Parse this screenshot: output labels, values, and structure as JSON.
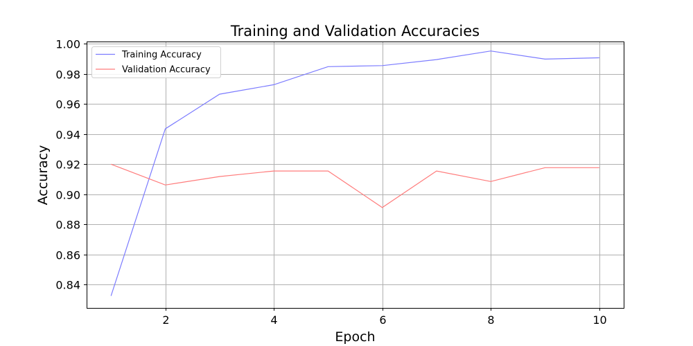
{
  "chart_data": {
    "type": "line",
    "title": "Training and Validation Accuracies",
    "xlabel": "Epoch",
    "ylabel": "Accuracy",
    "x": [
      1,
      2,
      3,
      4,
      5,
      6,
      7,
      8,
      9,
      10
    ],
    "xlim": [
      0.55,
      10.45
    ],
    "ylim": [
      0.8245,
      1.0015
    ],
    "x_ticks": [
      2,
      4,
      6,
      8,
      10
    ],
    "x_tick_labels": [
      "2",
      "4",
      "6",
      "8",
      "10"
    ],
    "y_ticks": [
      0.84,
      0.86,
      0.88,
      0.9,
      0.92,
      0.94,
      0.96,
      0.98,
      1.0
    ],
    "y_tick_labels": [
      "0.84",
      "0.86",
      "0.88",
      "0.90",
      "0.92",
      "0.94",
      "0.96",
      "0.98",
      "1.00"
    ],
    "grid": true,
    "legend_position": "top-left",
    "series": [
      {
        "name": "Training Accuracy",
        "color": "#7b7bff",
        "values": [
          0.8325,
          0.9435,
          0.9665,
          0.9728,
          0.9848,
          0.9855,
          0.9895,
          0.9952,
          0.9898,
          0.9907
        ]
      },
      {
        "name": "Validation Accuracy",
        "color": "#ff7b7b",
        "values": [
          0.92,
          0.9062,
          0.9118,
          0.9155,
          0.9155,
          0.8912,
          0.9155,
          0.9085,
          0.9177,
          0.9177
        ]
      }
    ]
  }
}
